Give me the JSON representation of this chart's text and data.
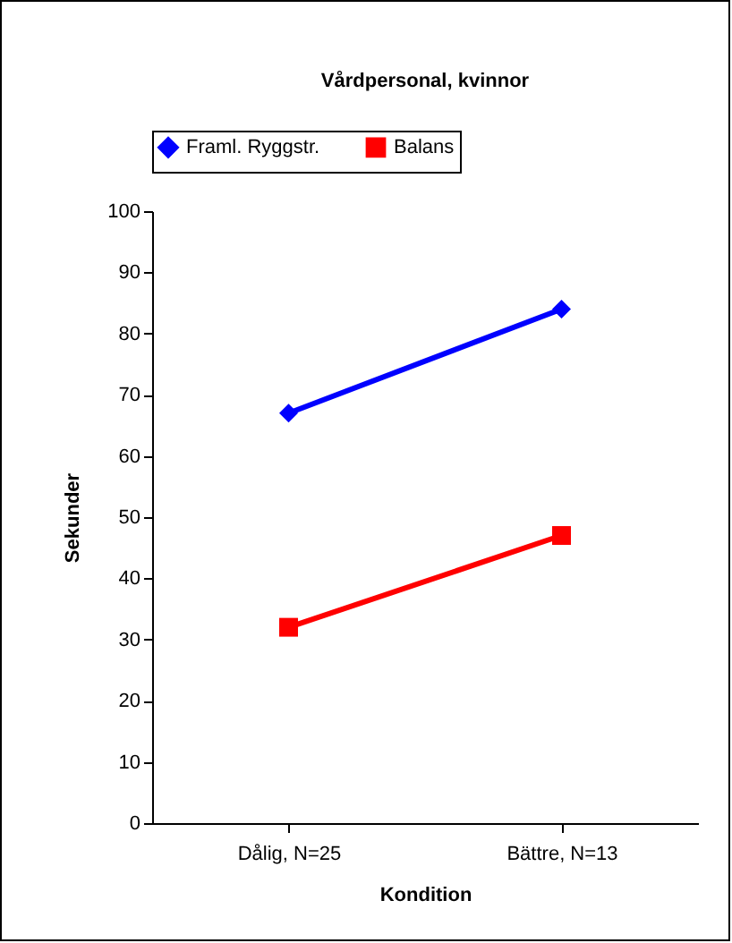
{
  "chart_data": {
    "type": "line",
    "title": "Vårdpersonal, kvinnor",
    "xlabel": "Kondition",
    "ylabel": "Sekunder",
    "categories": [
      "Dålig, N=25",
      "Bättre, N=13"
    ],
    "series": [
      {
        "name": "Framl. Ryggstr.",
        "color": "#0000ff",
        "marker": "diamond",
        "values": [
          67,
          84
        ]
      },
      {
        "name": "Balans",
        "color": "#ff0000",
        "marker": "square",
        "values": [
          32,
          47
        ]
      }
    ],
    "ylim": [
      0,
      100
    ],
    "yticks": [
      0,
      10,
      20,
      30,
      40,
      50,
      60,
      70,
      80,
      90,
      100
    ],
    "grid": false,
    "legend": "top",
    "line_style": "solid"
  }
}
